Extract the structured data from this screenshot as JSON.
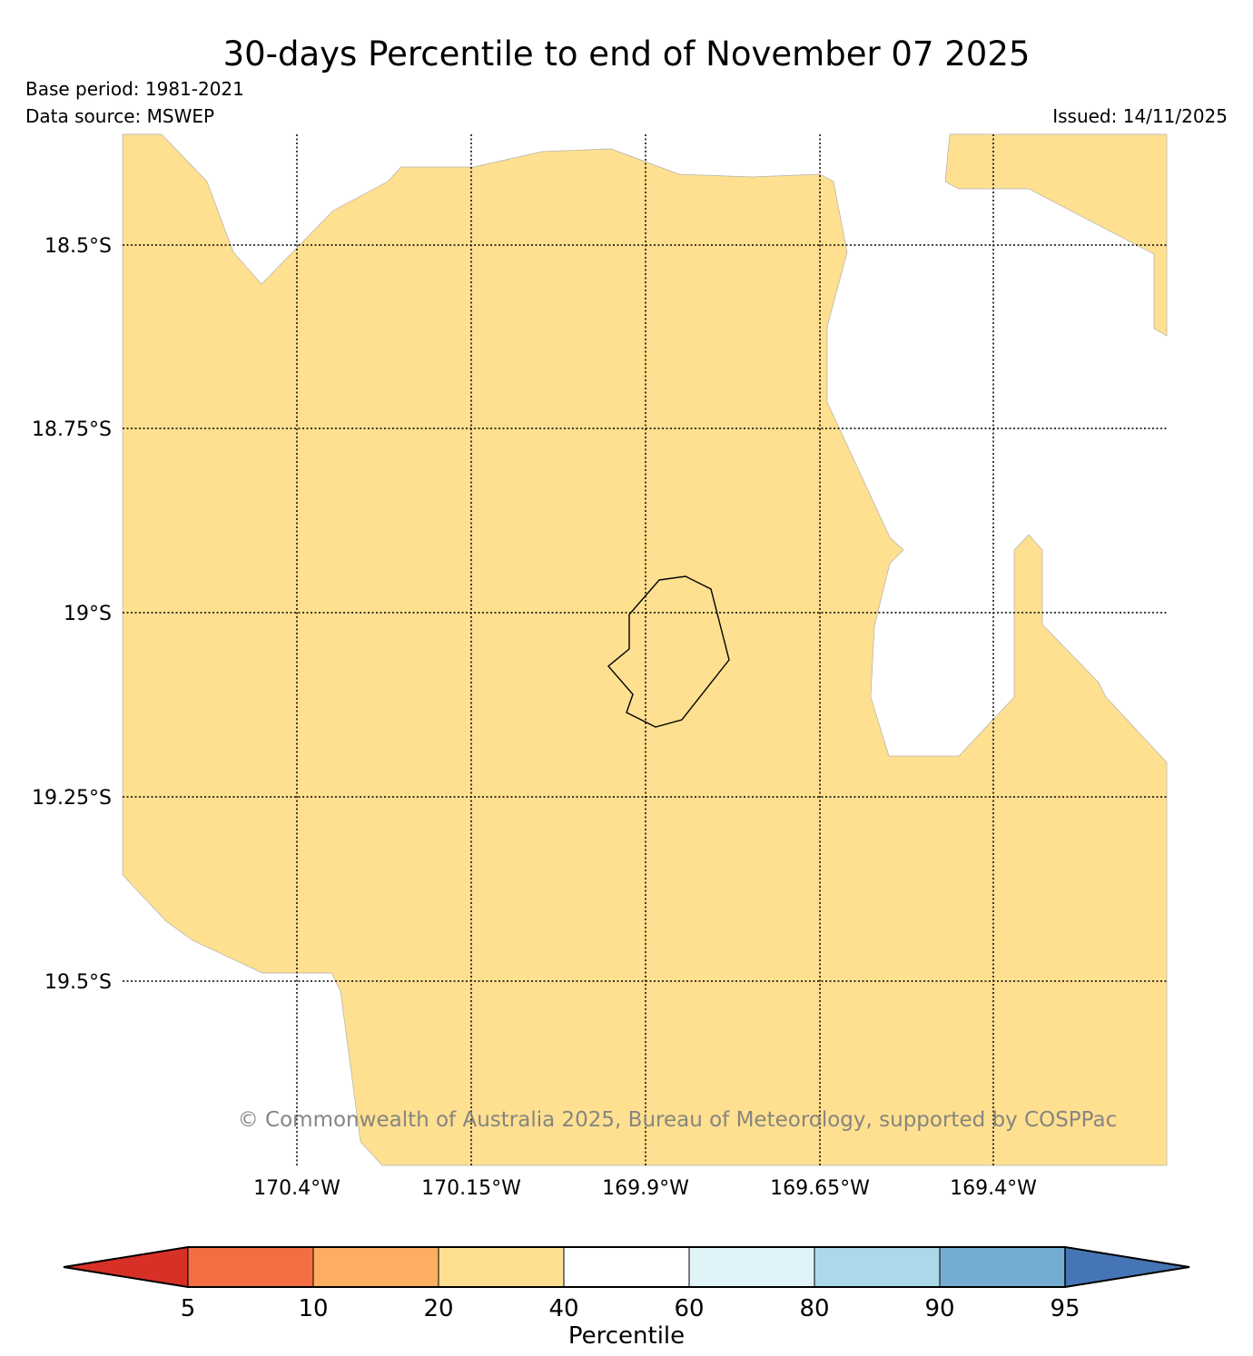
{
  "title": "30-days Percentile to end of November 07 2025",
  "base_period": "Base period: 1981-2021",
  "data_source": "Data source: MSWEP",
  "issued": "Issued: 14/11/2025",
  "copyright": "© Commonwealth of Australia 2025, Bureau of Meteorology, supported by COSPPac",
  "latitude_labels": [
    "18.5°S",
    "18.75°S",
    "19°S",
    "19.25°S",
    "19.5°S"
  ],
  "longitude_labels": [
    "170.4°W",
    "170.15°W",
    "169.9°W",
    "169.65°W",
    "169.4°W"
  ],
  "colorbar": {
    "label": "Percentile",
    "ticks": [
      "5",
      "10",
      "20",
      "40",
      "60",
      "80",
      "90",
      "95"
    ],
    "low_extend_color": "#d73027",
    "colors": [
      "#f46d43",
      "#fdae61",
      "#fee090",
      "#ffffff",
      "#e0f3f8",
      "#abd9e9",
      "#74add1"
    ],
    "high_extend_color": "#4575b4"
  },
  "map_fill_color": "#fee090"
}
